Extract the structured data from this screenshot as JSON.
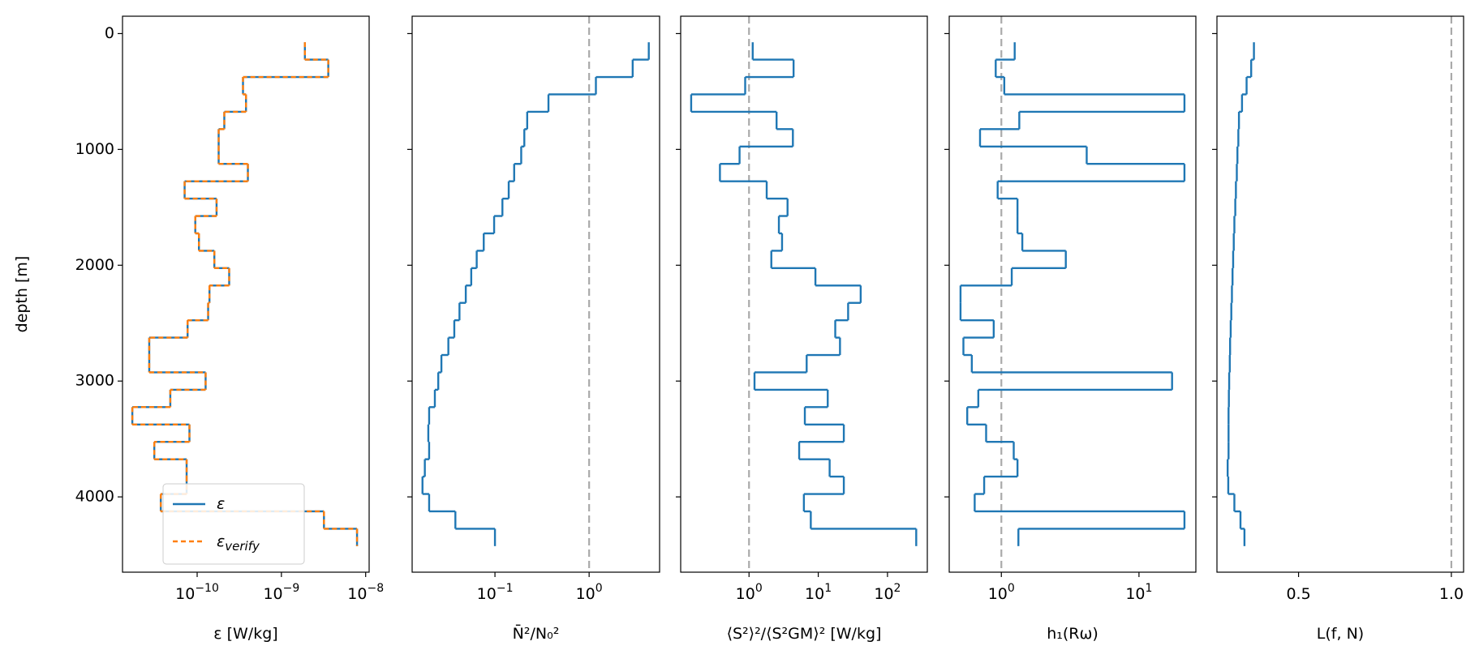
{
  "chart_data": [
    {
      "type": "step",
      "xlabel": "ε [W/kg]",
      "ylabel": "depth [m]",
      "xscale": "log",
      "xlim": [
        1.3e-11,
        1.1e-08
      ],
      "xticks": [
        {
          "value": 1e-10,
          "label": "10−10"
        },
        {
          "value": 1e-09,
          "label": "10−9"
        },
        {
          "value": 1e-08,
          "label": "10−8"
        }
      ],
      "ylim": [
        4650,
        -150
      ],
      "yticks": [
        0,
        1000,
        2000,
        3000,
        4000
      ],
      "ytick_labels": true,
      "depth_edges": [
        75,
        225,
        375,
        525,
        675,
        825,
        975,
        1125,
        1275,
        1425,
        1575,
        1725,
        1875,
        2025,
        2175,
        2325,
        2475,
        2625,
        2775,
        2925,
        3075,
        3225,
        3375,
        3525,
        3675,
        3825,
        3975,
        4125,
        4275,
        4425
      ],
      "legend": "lower center",
      "series": [
        {
          "name": "ε",
          "color": "#1f77b4",
          "dash": false,
          "values": [
            1.9e-09,
            3.6e-09,
            3.5e-10,
            3.8e-10,
            2.1e-10,
            1.8e-10,
            1.8e-10,
            4e-10,
            7.1e-11,
            1.7e-10,
            9.5e-11,
            1.05e-10,
            1.6e-10,
            2.4e-10,
            1.4e-10,
            1.35e-10,
            7.7e-11,
            2.7e-11,
            2.7e-11,
            1.26e-10,
            4.8e-11,
            1.7e-11,
            8.1e-11,
            3.1e-11,
            7.5e-11,
            7.5e-11,
            3.7e-11,
            3.2e-09,
            7.9e-09
          ]
        },
        {
          "name": "εverify",
          "color": "#ff7f0e",
          "dash": true,
          "values": [
            1.9e-09,
            3.6e-09,
            3.5e-10,
            3.8e-10,
            2.1e-10,
            1.8e-10,
            1.8e-10,
            4e-10,
            7.1e-11,
            1.7e-10,
            9.5e-11,
            1.05e-10,
            1.6e-10,
            2.4e-10,
            1.4e-10,
            1.35e-10,
            7.7e-11,
            2.7e-11,
            2.7e-11,
            1.26e-10,
            4.8e-11,
            1.7e-11,
            8.1e-11,
            3.1e-11,
            7.5e-11,
            7.5e-11,
            3.7e-11,
            3.2e-09,
            7.9e-09
          ]
        }
      ]
    },
    {
      "type": "step",
      "xlabel": "N̄²/N₀²",
      "xscale": "log",
      "xlim": [
        0.0132,
        5.6
      ],
      "xticks": [
        {
          "value": 0.1,
          "label": "10−1"
        },
        {
          "value": 1,
          "label": "100"
        }
      ],
      "ylim": [
        4650,
        -150
      ],
      "yticks": [
        0,
        1000,
        2000,
        3000,
        4000
      ],
      "ytick_labels": false,
      "depth_edges": [
        75,
        225,
        375,
        525,
        675,
        825,
        975,
        1125,
        1275,
        1425,
        1575,
        1725,
        1875,
        2025,
        2175,
        2325,
        2475,
        2625,
        2775,
        2925,
        3075,
        3225,
        3375,
        3525,
        3675,
        3825,
        3975,
        4125,
        4275,
        4425
      ],
      "refline": 1,
      "refline_color": "#aaaaaa",
      "series": [
        {
          "color": "#1f77b4",
          "values": [
            4.3,
            2.9,
            1.18,
            0.37,
            0.22,
            0.205,
            0.19,
            0.16,
            0.14,
            0.12,
            0.098,
            0.076,
            0.064,
            0.056,
            0.049,
            0.042,
            0.037,
            0.032,
            0.027,
            0.025,
            0.023,
            0.02,
            0.0196,
            0.02,
            0.018,
            0.017,
            0.02,
            0.038,
            0.1
          ]
        }
      ]
    },
    {
      "type": "step",
      "xlabel": "⟨S²⟩²/⟨S²GM⟩² [W/kg]",
      "xscale": "log",
      "xlim": [
        0.103,
        376
      ],
      "xticks": [
        {
          "value": 1,
          "label": "100"
        },
        {
          "value": 10,
          "label": "101"
        },
        {
          "value": 100,
          "label": "102"
        }
      ],
      "ylim": [
        4650,
        -150
      ],
      "yticks": [
        0,
        1000,
        2000,
        3000,
        4000
      ],
      "ytick_labels": false,
      "depth_edges": [
        75,
        225,
        375,
        525,
        675,
        825,
        975,
        1125,
        1275,
        1425,
        1575,
        1725,
        1875,
        2025,
        2175,
        2325,
        2475,
        2625,
        2775,
        2925,
        3075,
        3225,
        3375,
        3525,
        3675,
        3825,
        3975,
        4125,
        4275,
        4425
      ],
      "refline": 1,
      "refline_color": "#aaaaaa",
      "series": [
        {
          "color": "#1f77b4",
          "values": [
            1.13,
            4.4,
            0.88,
            0.146,
            2.5,
            4.3,
            0.73,
            0.38,
            1.8,
            3.6,
            2.7,
            3.0,
            2.1,
            9.1,
            41,
            27,
            17.6,
            20.6,
            6.8,
            1.2,
            13.7,
            6.4,
            23.4,
            5.3,
            14.6,
            23.4,
            6.2,
            7.8,
            260
          ]
        }
      ]
    },
    {
      "type": "step",
      "xlabel": "h₁(Rω)",
      "xscale": "log",
      "xlim": [
        0.418,
        25.9
      ],
      "xticks": [
        {
          "value": 1,
          "label": "100"
        },
        {
          "value": 10,
          "label": "101"
        }
      ],
      "ylim": [
        4650,
        -150
      ],
      "yticks": [
        0,
        1000,
        2000,
        3000,
        4000
      ],
      "ytick_labels": false,
      "depth_edges": [
        75,
        225,
        375,
        525,
        675,
        825,
        975,
        1125,
        1275,
        1425,
        1575,
        1725,
        1875,
        2025,
        2175,
        2325,
        2475,
        2625,
        2775,
        2925,
        3075,
        3225,
        3375,
        3525,
        3675,
        3825,
        3975,
        4125,
        4275,
        4425
      ],
      "refline": 1,
      "refline_color": "#aaaaaa",
      "series": [
        {
          "color": "#1f77b4",
          "values": [
            1.25,
            0.91,
            1.05,
            21.4,
            1.35,
            0.7,
            4.17,
            21.4,
            0.94,
            1.31,
            1.31,
            1.42,
            2.94,
            1.19,
            0.505,
            0.505,
            0.88,
            0.53,
            0.61,
            17.4,
            0.68,
            0.565,
            0.775,
            1.23,
            1.31,
            0.75,
            0.64,
            21.4,
            1.33
          ]
        }
      ]
    },
    {
      "type": "step",
      "xlabel": "L(f, N)",
      "xscale": "linear",
      "xlim": [
        0.233,
        1.04
      ],
      "xticks": [
        0.5,
        {
          "value": 1,
          "label": "1.0"
        }
      ],
      "ylim": [
        4650,
        -150
      ],
      "yticks": [
        0,
        1000,
        2000,
        3000,
        4000
      ],
      "ytick_labels": false,
      "depth_edges": [
        75,
        225,
        375,
        525,
        675,
        825,
        975,
        1125,
        1275,
        1425,
        1575,
        1725,
        1875,
        2025,
        2175,
        2325,
        2475,
        2625,
        2775,
        2925,
        3075,
        3225,
        3375,
        3525,
        3675,
        3825,
        3975,
        4125,
        4275,
        4425
      ],
      "refline": 1,
      "refline_color": "#aaaaaa",
      "series": [
        {
          "color": "#1f77b4",
          "values": [
            0.354,
            0.345,
            0.33,
            0.315,
            0.305,
            0.303,
            0.3,
            0.298,
            0.295,
            0.293,
            0.29,
            0.288,
            0.286,
            0.284,
            0.282,
            0.28,
            0.278,
            0.276,
            0.275,
            0.273,
            0.272,
            0.271,
            0.271,
            0.271,
            0.268,
            0.27,
            0.29,
            0.31,
            0.323
          ]
        }
      ]
    }
  ]
}
